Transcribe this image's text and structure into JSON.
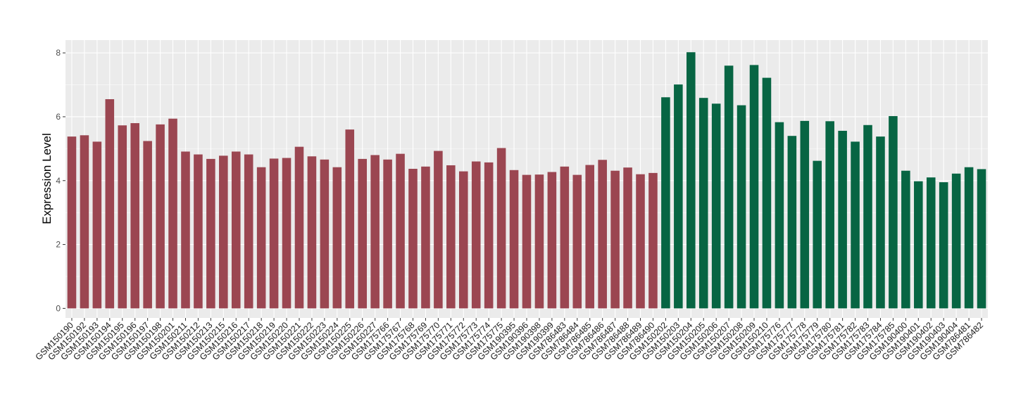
{
  "chart_data": {
    "type": "bar",
    "title": "",
    "xlabel": "",
    "ylabel": "Expression Level",
    "ylim": [
      -0.3,
      8.4
    ],
    "yticks": [
      0,
      2,
      4,
      6,
      8
    ],
    "grid": true,
    "legend": "none",
    "colors": {
      "group_a": "#9b4651",
      "group_b": "#076543",
      "panel_bg": "#ebebeb",
      "grid_line": "#ffffff"
    },
    "categories": [
      "GSM150190",
      "GSM150192",
      "GSM150193",
      "GSM150194",
      "GSM150195",
      "GSM150196",
      "GSM150197",
      "GSM150198",
      "GSM150201",
      "GSM150211",
      "GSM150212",
      "GSM150213",
      "GSM150215",
      "GSM150216",
      "GSM150217",
      "GSM150218",
      "GSM150219",
      "GSM150220",
      "GSM150221",
      "GSM150222",
      "GSM150223",
      "GSM150224",
      "GSM150225",
      "GSM150226",
      "GSM150227",
      "GSM175766",
      "GSM175767",
      "GSM175768",
      "GSM175769",
      "GSM175770",
      "GSM175771",
      "GSM175772",
      "GSM175773",
      "GSM175774",
      "GSM175775",
      "GSM190395",
      "GSM190396",
      "GSM190398",
      "GSM190399",
      "GSM786483",
      "GSM786484",
      "GSM786485",
      "GSM786486",
      "GSM786487",
      "GSM786488",
      "GSM786489",
      "GSM786490",
      "GSM150202",
      "GSM150203",
      "GSM150204",
      "GSM150205",
      "GSM150206",
      "GSM150207",
      "GSM150208",
      "GSM150209",
      "GSM150210",
      "GSM175776",
      "GSM175777",
      "GSM175778",
      "GSM175779",
      "GSM175780",
      "GSM175781",
      "GSM175782",
      "GSM175783",
      "GSM175784",
      "GSM175785",
      "GSM190400",
      "GSM190401",
      "GSM190402",
      "GSM190403",
      "GSM190404",
      "GSM786481",
      "GSM786482"
    ],
    "values": [
      5.38,
      5.42,
      5.22,
      6.55,
      5.73,
      5.8,
      5.24,
      5.76,
      5.94,
      4.91,
      4.82,
      4.68,
      4.78,
      4.91,
      4.82,
      4.42,
      4.69,
      4.71,
      5.06,
      4.76,
      4.66,
      4.42,
      5.6,
      4.68,
      4.8,
      4.66,
      4.84,
      4.37,
      4.44,
      4.93,
      4.48,
      4.29,
      4.6,
      4.57,
      5.02,
      4.33,
      4.18,
      4.19,
      4.27,
      4.44,
      4.18,
      4.49,
      4.65,
      4.31,
      4.41,
      4.2,
      4.24,
      6.61,
      7.01,
      8.02,
      6.59,
      6.41,
      7.6,
      6.36,
      7.62,
      7.22,
      5.83,
      5.4,
      5.87,
      4.62,
      5.86,
      5.56,
      5.22,
      5.74,
      5.38,
      6.02,
      4.31,
      3.98,
      4.1,
      3.95,
      4.22,
      4.42,
      4.36
    ],
    "group_a_count": 47
  }
}
